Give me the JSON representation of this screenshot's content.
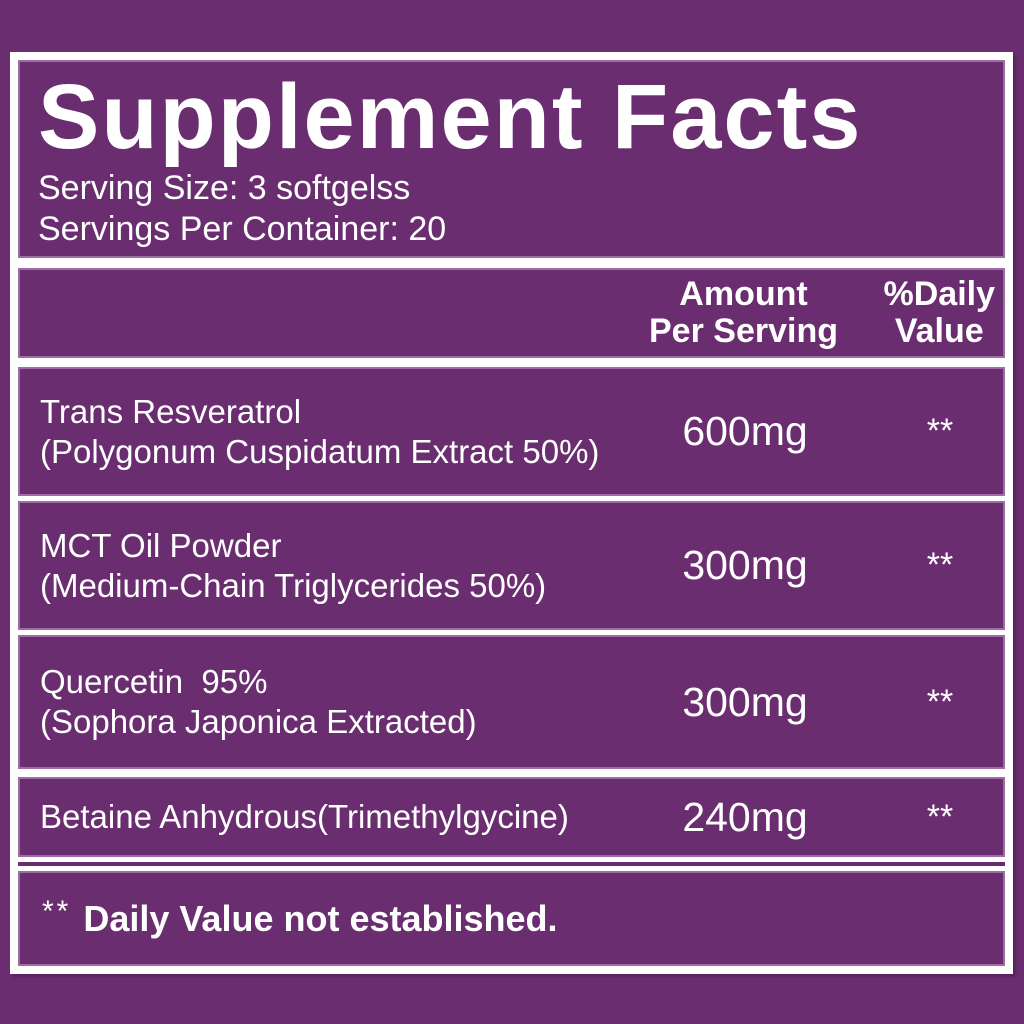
{
  "panel": {
    "title": "Supplement Facts",
    "serving_size": "Serving Size: 3 softgelss",
    "servings_per_container": "Servings Per Container: 20",
    "columns": {
      "amount_line1": "Amount",
      "amount_line2": "Per Serving",
      "daily_value_line1": "%Daily",
      "daily_value_line2": "Value"
    },
    "rows": [
      {
        "name_line1": "Trans Resveratrol",
        "name_line2": "(Polygonum Cuspidatum Extract 50%)",
        "amount": "600mg",
        "daily_value": "**"
      },
      {
        "name_line1": "MCT Oil Powder",
        "name_line2": "(Medium-Chain Triglycerides 50%)",
        "amount": "300mg",
        "daily_value": "**"
      },
      {
        "name_line1": "Quercetin  95%",
        "name_line2": "(Sophora Japonica Extracted)",
        "amount": "300mg",
        "daily_value": "**"
      },
      {
        "name_line1": "Betaine Anhydrous(Trimethylgycine)",
        "amount": "240mg",
        "daily_value": "**"
      }
    ],
    "footnote": {
      "marker": "**",
      "text": "Daily Value not established."
    },
    "colors": {
      "background": "#6a2e70",
      "panel_fill": "#6a2e70",
      "frame_border": "#ffffff",
      "section_outline": "#c6a2d0",
      "text": "#ffffff"
    }
  }
}
